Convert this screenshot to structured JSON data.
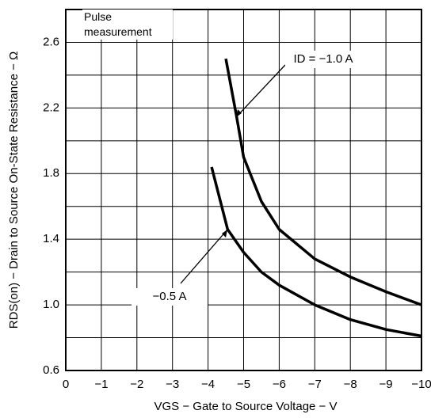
{
  "chart_data": {
    "type": "line",
    "x_label": "VGS − Gate to Source Voltage − V",
    "y_label": "RDS(on) − Drain to Source On-State Resistance − Ω",
    "annotations": [
      "Pulse measurement"
    ],
    "xlim": [
      0,
      -10
    ],
    "xticks": [
      0,
      {
        "value": -1,
        "label": "−1"
      },
      {
        "value": -2,
        "label": "−2"
      },
      {
        "value": -3,
        "label": "−3"
      },
      {
        "value": -4,
        "label": "−4"
      },
      {
        "value": -5,
        "label": "−5"
      },
      {
        "value": -6,
        "label": "−6"
      },
      {
        "value": -7,
        "label": "−7"
      },
      {
        "value": -8,
        "label": "−8"
      },
      {
        "value": -9,
        "label": "−9"
      },
      {
        "value": -10,
        "label": "−10"
      }
    ],
    "ylim": [
      0.6,
      2.8
    ],
    "yticks": [
      0.6,
      {
        "value": 1.0,
        "label": "1.0"
      },
      1.4,
      1.8,
      2.2,
      2.6
    ],
    "y_minor_ticks": [
      0.8,
      1.2,
      1.6,
      2.0,
      2.4,
      2.8
    ],
    "grid": true,
    "series": [
      {
        "name": "ID = −1.0 A",
        "color": "#000000",
        "x": [
          -4.5,
          -4.8,
          -5,
          -5.5,
          -6,
          -7,
          -8,
          -9,
          -10
        ],
        "values": [
          2.5,
          2.15,
          1.9,
          1.63,
          1.46,
          1.28,
          1.17,
          1.08,
          1.0
        ]
      },
      {
        "name": "−0.5 A",
        "color": "#000000",
        "x": [
          -4.1,
          -4.55,
          -5,
          -5.5,
          -6,
          -7,
          -8,
          -9,
          -10
        ],
        "values": [
          1.84,
          1.46,
          1.32,
          1.2,
          1.12,
          1.0,
          0.91,
          0.85,
          0.81
        ]
      }
    ]
  }
}
